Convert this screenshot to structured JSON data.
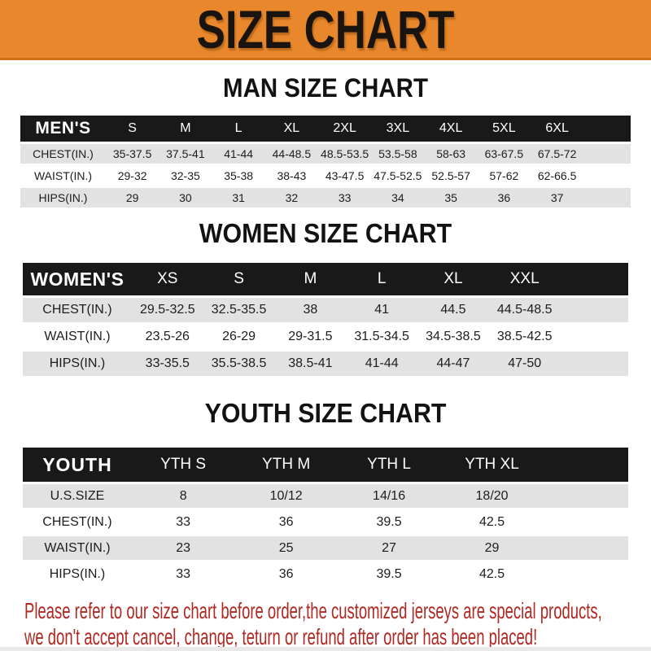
{
  "banner": {
    "title": "SIZE CHART",
    "background_color": "#e8872b",
    "title_color": "#1a1a1a"
  },
  "sections": [
    {
      "id": "men",
      "title": "MAN SIZE CHART",
      "table": {
        "header": [
          "MEN'S",
          "S",
          "M",
          "L",
          "XL",
          "2XL",
          "3XL",
          "4XL",
          "5XL",
          "6XL"
        ],
        "rows": [
          [
            "CHEST(IN.)",
            "35-37.5",
            "37.5-41",
            "41-44",
            "44-48.5",
            "48.5-53.5",
            "53.5-58",
            "58-63",
            "63-67.5",
            "67.5-72"
          ],
          [
            "WAIST(IN.)",
            "29-32",
            "32-35",
            "35-38",
            "38-43",
            "43-47.5",
            "47.5-52.5",
            "52.5-57",
            "57-62",
            "62-66.5"
          ],
          [
            "HIPS(IN.)",
            "29",
            "30",
            "31",
            "32",
            "33",
            "34",
            "35",
            "36",
            "37"
          ]
        ]
      }
    },
    {
      "id": "women",
      "title": "WOMEN SIZE CHART",
      "table": {
        "header": [
          "WOMEN'S",
          "XS",
          "S",
          "M",
          "L",
          "XL",
          "XXL"
        ],
        "rows": [
          [
            "CHEST(IN.)",
            "29.5-32.5",
            "32.5-35.5",
            "38",
            "41",
            "44.5",
            "44.5-48.5"
          ],
          [
            "WAIST(IN.)",
            "23.5-26",
            "26-29",
            "29-31.5",
            "31.5-34.5",
            "34.5-38.5",
            "38.5-42.5"
          ],
          [
            "HIPS(IN.)",
            "33-35.5",
            "35.5-38.5",
            "38.5-41",
            "41-44",
            "44-47",
            "47-50"
          ]
        ]
      }
    },
    {
      "id": "youth",
      "title": "YOUTH SIZE CHART",
      "table": {
        "header": [
          "YOUTH",
          "YTH S",
          "YTH M",
          "YTH L",
          "YTH XL"
        ],
        "rows": [
          [
            "U.S.SIZE",
            "8",
            "10/12",
            "14/16",
            "18/20"
          ],
          [
            "CHEST(IN.)",
            "33",
            "36",
            "39.5",
            "42.5"
          ],
          [
            "WAIST(IN.)",
            "23",
            "25",
            "27",
            "29"
          ],
          [
            "HIPS(IN.)",
            "33",
            "36",
            "39.5",
            "42.5"
          ]
        ]
      }
    }
  ],
  "disclaimer": {
    "line1": "Please refer to our size chart before order,the customized jerseys are special products,",
    "line2": "we don't accept cancel, change, teturn or refund after order has been placed!",
    "text_color": "#b02822"
  },
  "colors": {
    "header_bar": "#191919",
    "row_alt_gray": "#e2e2e2",
    "banner_orange": "#e8872b"
  }
}
